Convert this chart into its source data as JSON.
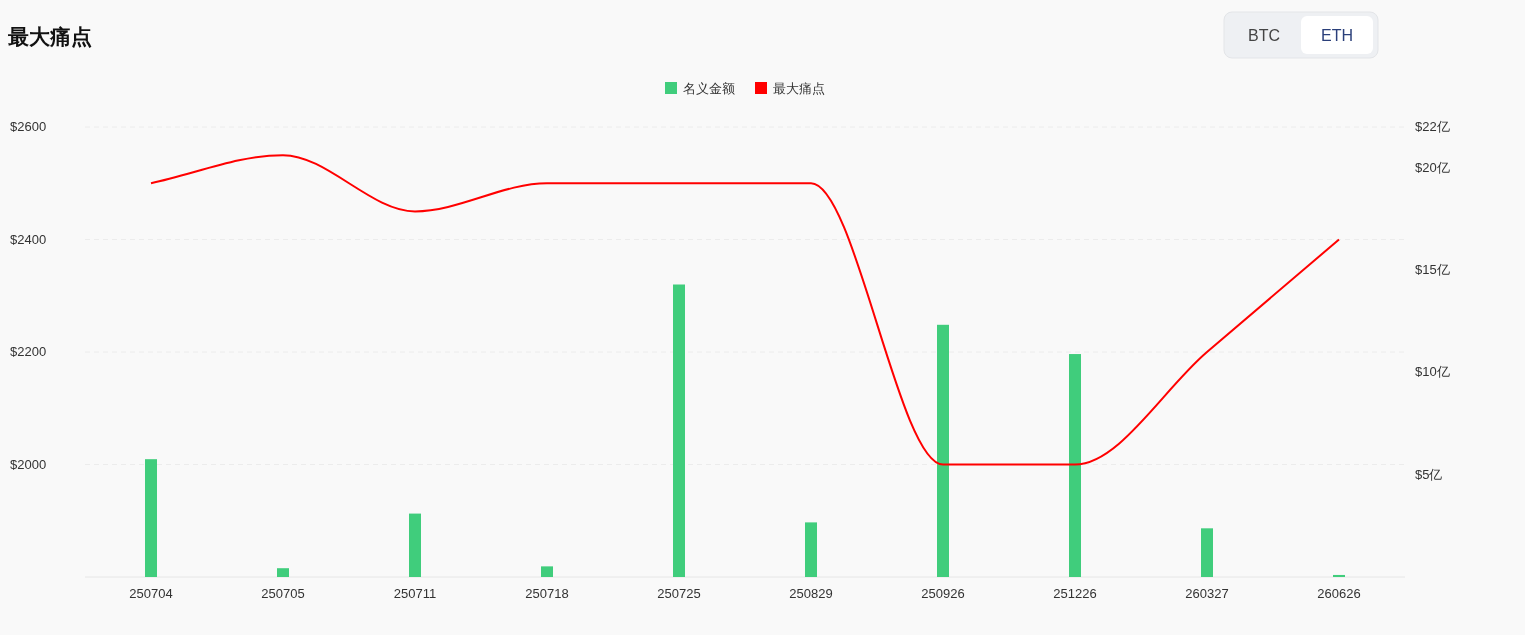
{
  "chart_data": {
    "type": "bar",
    "title": "最大痛点",
    "categories": [
      "250704",
      "250705",
      "250711",
      "250718",
      "250725",
      "250829",
      "250926",
      "251226",
      "260327",
      "260626"
    ],
    "series": [
      {
        "name": "名义金额",
        "axis": "y2",
        "color": "#40cd7c",
        "values": [
          5.76,
          0.43,
          3.1,
          0.52,
          14.3,
          2.67,
          12.33,
          10.9,
          2.38,
          0.1
        ]
      },
      {
        "name": "最大痛点",
        "type": "line",
        "color": "#ff0000",
        "values": [
          2500,
          2550,
          2450,
          2500,
          2500,
          2500,
          2000,
          2000,
          2200,
          2400
        ]
      }
    ],
    "ylim": [
      1800,
      2600
    ],
    "yticks": [
      {
        "value": 2000,
        "label": "$2000"
      },
      {
        "value": 2200,
        "label": "$2200"
      },
      {
        "value": 2400,
        "label": "$2400"
      },
      {
        "value": 2600,
        "label": "$2600"
      }
    ],
    "y2lim": [
      0,
      22
    ],
    "y2ticks": [
      {
        "value": 5,
        "label": "$5亿"
      },
      {
        "value": 10,
        "label": "$10亿"
      },
      {
        "value": 15,
        "label": "$15亿"
      },
      {
        "value": 20,
        "label": "$20亿"
      },
      {
        "value": 22,
        "label": "$22亿"
      }
    ],
    "grid": "y",
    "legend": "top",
    "marker": "none",
    "line_style": "solid",
    "annotations": [
      "BTC",
      "ETH"
    ]
  }
}
